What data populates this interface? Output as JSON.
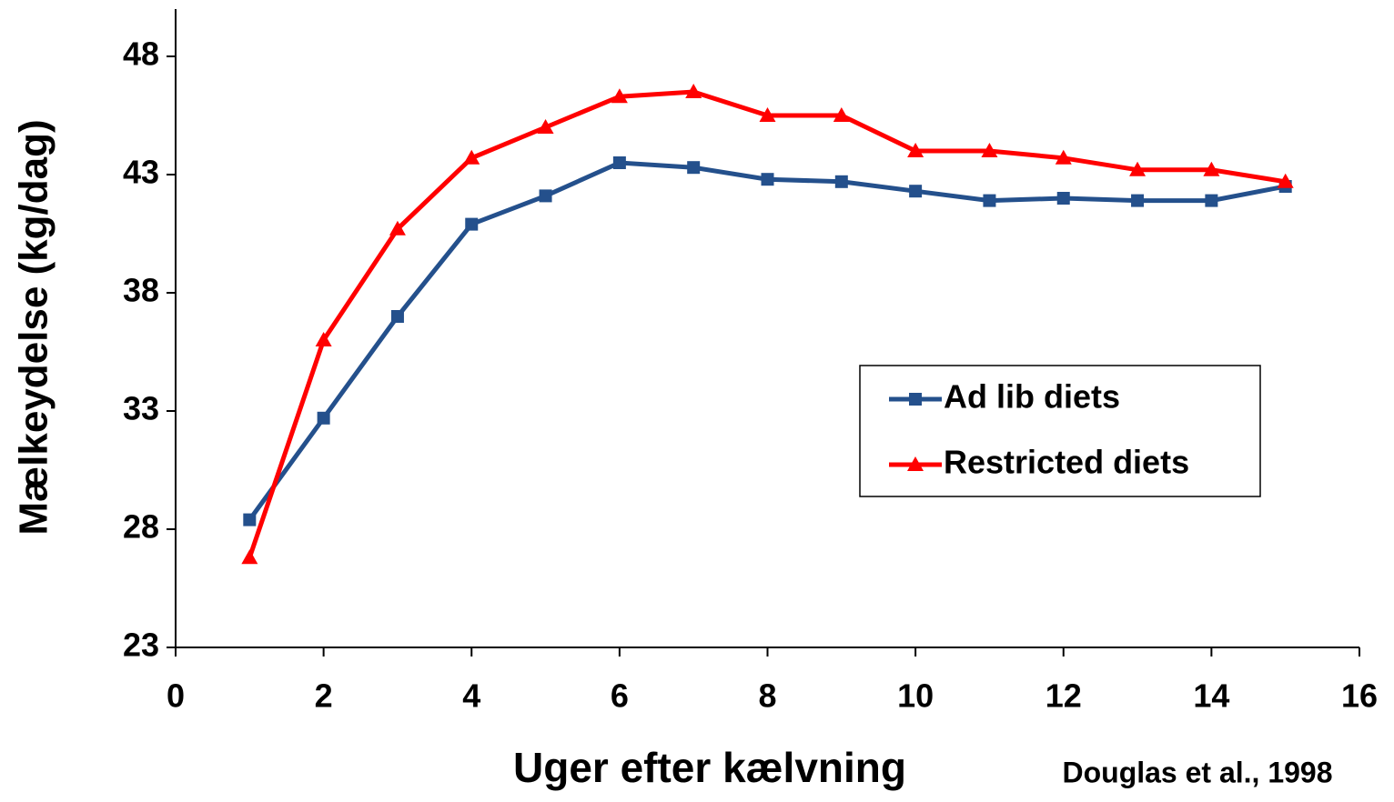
{
  "chart_data": {
    "type": "line",
    "xlabel": "Uger efter kælvning",
    "ylabel": "Mælkeydelse (kg/dag)",
    "annotation": "Douglas et al., 1998",
    "x": [
      1,
      2,
      3,
      4,
      5,
      6,
      7,
      8,
      9,
      10,
      11,
      12,
      13,
      14,
      15
    ],
    "series": [
      {
        "name": "Ad lib diets",
        "color": "#24508c",
        "marker": "square",
        "values": [
          28.4,
          32.7,
          37.0,
          40.9,
          42.1,
          43.5,
          43.3,
          42.8,
          42.7,
          42.3,
          41.9,
          42.0,
          41.9,
          41.9,
          42.5
        ]
      },
      {
        "name": "Restricted diets",
        "color": "#ff0000",
        "marker": "triangle",
        "values": [
          26.8,
          36.0,
          40.7,
          43.7,
          45.0,
          46.3,
          46.5,
          45.5,
          45.5,
          44.0,
          44.0,
          43.7,
          43.2,
          43.2,
          42.7
        ]
      }
    ],
    "xlim": [
      0,
      16
    ],
    "xticks": [
      0,
      2,
      4,
      6,
      8,
      10,
      12,
      14,
      16
    ],
    "ylim": [
      23,
      50
    ],
    "yticks": [
      23,
      28,
      33,
      38,
      43,
      48
    ],
    "legend": "center-right"
  }
}
